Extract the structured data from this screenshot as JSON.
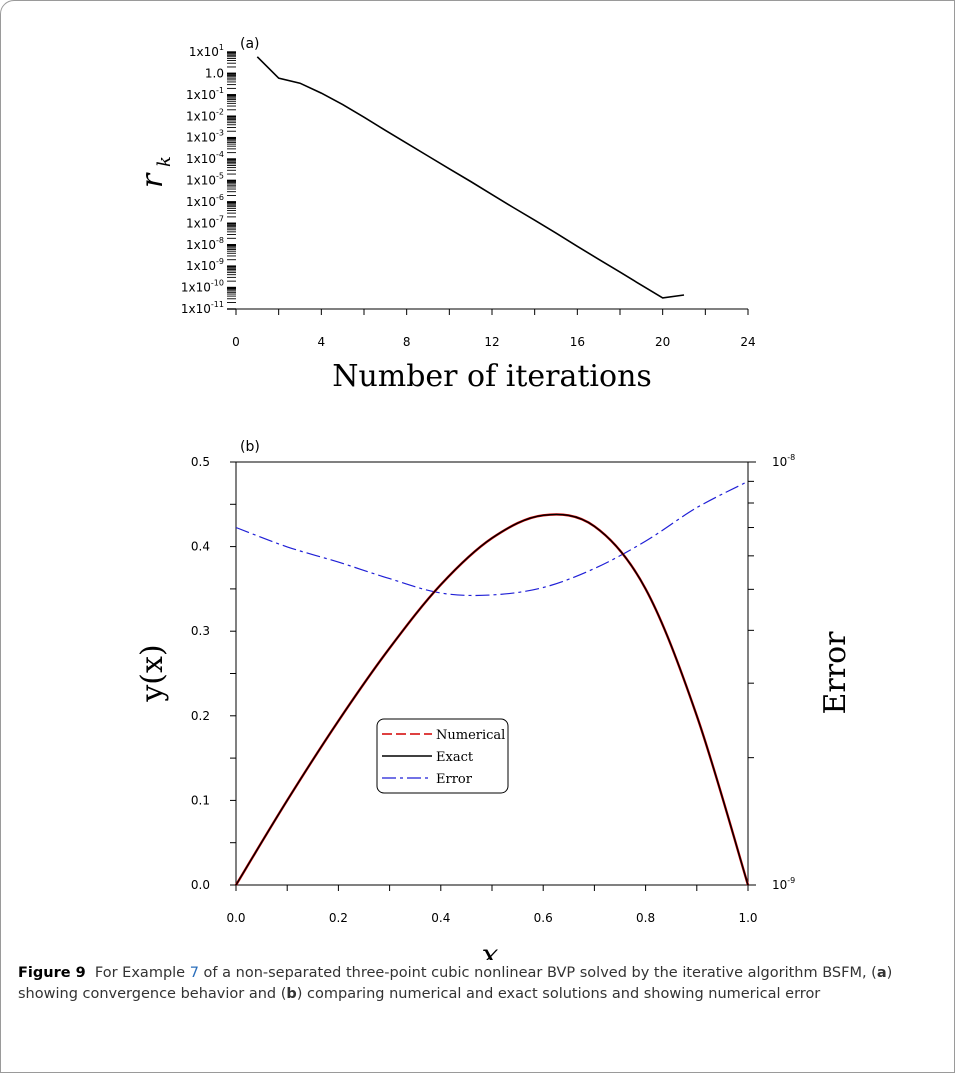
{
  "charts": [
    {
      "panel_label": "(a)",
      "type": "line",
      "title": "",
      "xlabel": "Number of iterations",
      "ylabel_main": "r",
      "ylabel_sub": "k",
      "x_ticks": [
        "0",
        "4",
        "8",
        "12",
        "16",
        "20",
        "24"
      ],
      "y_ticks": [
        {
          "mant": "1x10",
          "exp": "1"
        },
        {
          "mant": "1.0",
          "exp": ""
        },
        {
          "mant": "1x10",
          "exp": "-1"
        },
        {
          "mant": "1x10",
          "exp": "-2"
        },
        {
          "mant": "1x10",
          "exp": "-3"
        },
        {
          "mant": "1x10",
          "exp": "-4"
        },
        {
          "mant": "1x10",
          "exp": "-5"
        },
        {
          "mant": "1x10",
          "exp": "-6"
        },
        {
          "mant": "1x10",
          "exp": "-7"
        },
        {
          "mant": "1x10",
          "exp": "-8"
        },
        {
          "mant": "1x10",
          "exp": "-9"
        },
        {
          "mant": "1x10",
          "exp": "-10"
        },
        {
          "mant": "1x10",
          "exp": "-11"
        }
      ],
      "xlim": [
        0,
        24
      ],
      "ylim_log10": [
        -11,
        1
      ],
      "yscale": "log",
      "series": [
        {
          "x": [
            1,
            2,
            3,
            4,
            5,
            6,
            7,
            8,
            9,
            10,
            11,
            12,
            13,
            14,
            15,
            16,
            17,
            18,
            19,
            20,
            21
          ],
          "y": [
            6,
            0.6,
            0.35,
            0.12,
            0.035,
            0.009,
            0.0022,
            0.00055,
            0.00014,
            3.5e-05,
            9e-06,
            2.2e-06,
            5.5e-07,
            1.4e-07,
            3.5e-08,
            8.5e-09,
            2.1e-09,
            5.3e-10,
            1.3e-10,
            3.3e-11,
            4.5e-11
          ]
        }
      ]
    },
    {
      "panel_label": "(b)",
      "type": "line",
      "title": "",
      "xlabel": "x",
      "ylabel": "y(x)",
      "ylabel_right": "Error",
      "x_ticks": [
        "0.0",
        "0.2",
        "0.4",
        "0.6",
        "0.8",
        "1.0"
      ],
      "y_ticks": [
        "0.0",
        "0.1",
        "0.2",
        "0.3",
        "0.4",
        "0.5"
      ],
      "y2_ticks": [
        {
          "mant": "10",
          "exp": "-9"
        },
        {
          "mant": "10",
          "exp": "-8"
        }
      ],
      "xlim": [
        0,
        1
      ],
      "ylim": [
        0,
        0.5
      ],
      "y2lim": [
        1e-09,
        1e-08
      ],
      "legend": [
        "Numerical",
        "Exact",
        "Error"
      ],
      "legend_position": "center-left",
      "series": [
        {
          "name": "Numerical",
          "color": "#d40000",
          "x": [
            0,
            0.1,
            0.2,
            0.3,
            0.4,
            0.5,
            0.6,
            0.7,
            0.8,
            0.9,
            1.0
          ],
          "y": [
            0,
            0.1,
            0.194,
            0.28,
            0.355,
            0.41,
            0.437,
            0.424,
            0.35,
            0.2,
            0
          ]
        },
        {
          "name": "Exact",
          "color": "#000000",
          "x": [
            0,
            0.1,
            0.2,
            0.3,
            0.4,
            0.5,
            0.6,
            0.7,
            0.8,
            0.9,
            1.0
          ],
          "y": [
            0,
            0.1,
            0.194,
            0.28,
            0.355,
            0.41,
            0.437,
            0.424,
            0.35,
            0.2,
            0
          ]
        },
        {
          "name": "Error",
          "color": "#1f1fd6",
          "x": [
            0,
            0.1,
            0.2,
            0.3,
            0.4,
            0.5,
            0.6,
            0.7,
            0.8,
            0.9,
            1.0
          ],
          "y": [
            7e-09,
            6.3e-09,
            5.8e-09,
            5.3e-09,
            4.9e-09,
            4.85e-09,
            5.05e-09,
            5.6e-09,
            6.5e-09,
            7.8e-09,
            9e-09
          ]
        }
      ]
    }
  ],
  "caption": {
    "figure_label": "Figure 9",
    "text_1": "For Example ",
    "ref": "7",
    "text_2": " of a non-separated three-point cubic nonlinear BVP solved by the iterative algorithm BSFM, (",
    "a": "a",
    "text_3": ") showing convergence behavior and (",
    "b": "b",
    "text_4": ") comparing numerical and exact solutions and showing numerical error"
  }
}
